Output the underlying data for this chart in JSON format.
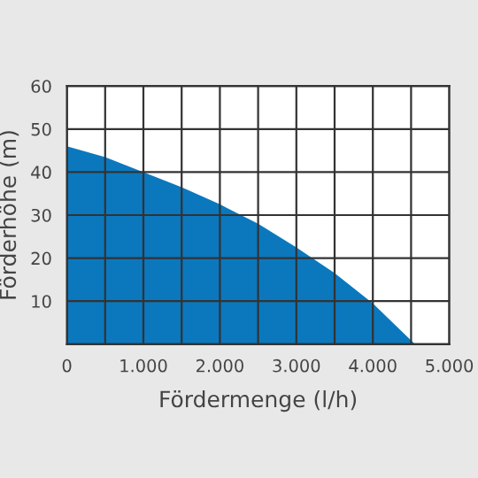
{
  "chart_data": {
    "type": "area",
    "xlabel": "Fördermenge (l/h)",
    "ylabel": "Förderhöhe (m)",
    "x": [
      0,
      500,
      1000,
      1500,
      2000,
      2500,
      3000,
      3500,
      4000,
      4550
    ],
    "series": [
      {
        "color": "#0b78be",
        "values": [
          46,
          43.5,
          40,
          36.5,
          32.5,
          28,
          22.5,
          16.5,
          9.5,
          0
        ]
      }
    ],
    "xlim": [
      0,
      5000
    ],
    "ylim": [
      0,
      60
    ],
    "xticks": [
      0,
      {
        "value": 1000,
        "label": "1.000"
      },
      {
        "value": 2000,
        "label": "2.000"
      },
      {
        "value": 3000,
        "label": "3.000"
      },
      {
        "value": 4000,
        "label": "4.000"
      },
      {
        "value": 5000,
        "label": "5.000"
      }
    ],
    "yticks": [
      {
        "value": 0,
        "label": null
      },
      10,
      20,
      30,
      40,
      50,
      60
    ],
    "grid": true
  }
}
